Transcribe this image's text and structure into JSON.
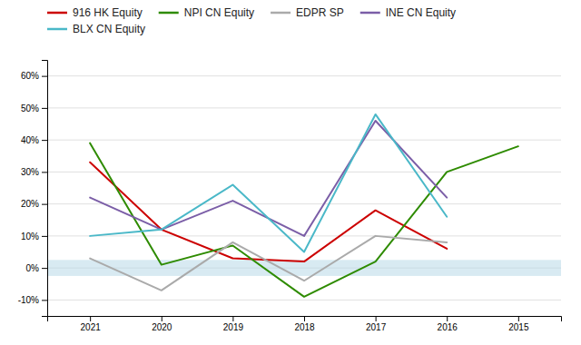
{
  "chart_data": {
    "type": "line",
    "x": [
      2021,
      2020,
      2019,
      2018,
      2017,
      2016,
      2015
    ],
    "series": [
      {
        "name": "916 HK Equity",
        "color": "#cc0000",
        "values": [
          33,
          12,
          3,
          2,
          18,
          6,
          null
        ]
      },
      {
        "name": "NPI CN Equity",
        "color": "#2e8b00",
        "values": [
          39,
          1,
          7,
          -9,
          2,
          30,
          38
        ]
      },
      {
        "name": "EDPR SP",
        "color": "#aaaaaa",
        "values": [
          3,
          -7,
          8,
          -4,
          10,
          8,
          null
        ]
      },
      {
        "name": "INE CN Equity",
        "color": "#7b5ea7",
        "values": [
          22,
          12,
          21,
          10,
          46,
          22,
          null
        ]
      },
      {
        "name": "BLX CN Equity",
        "color": "#4ab8c8",
        "values": [
          10,
          12,
          26,
          5,
          48,
          16,
          null
        ]
      }
    ],
    "xlim": [
      2021.6,
      2014.4
    ],
    "xticks": [
      2021,
      2020,
      2019,
      2018,
      2017,
      2016,
      2015
    ],
    "ylim": [
      -15,
      65
    ],
    "yticks": [
      {
        "value": -10,
        "label": "-10%"
      },
      {
        "value": 0,
        "label": "0%"
      },
      {
        "value": 10,
        "label": "10%"
      },
      {
        "value": 20,
        "label": "20%"
      },
      {
        "value": 30,
        "label": "30%"
      },
      {
        "value": 40,
        "label": "40%"
      },
      {
        "value": 50,
        "label": "50%"
      },
      {
        "value": 60,
        "label": "60%"
      }
    ],
    "zero_band": {
      "from": -2.5,
      "to": 2.5,
      "color": "#b8d8e8"
    },
    "grid": true,
    "legend": "top"
  }
}
